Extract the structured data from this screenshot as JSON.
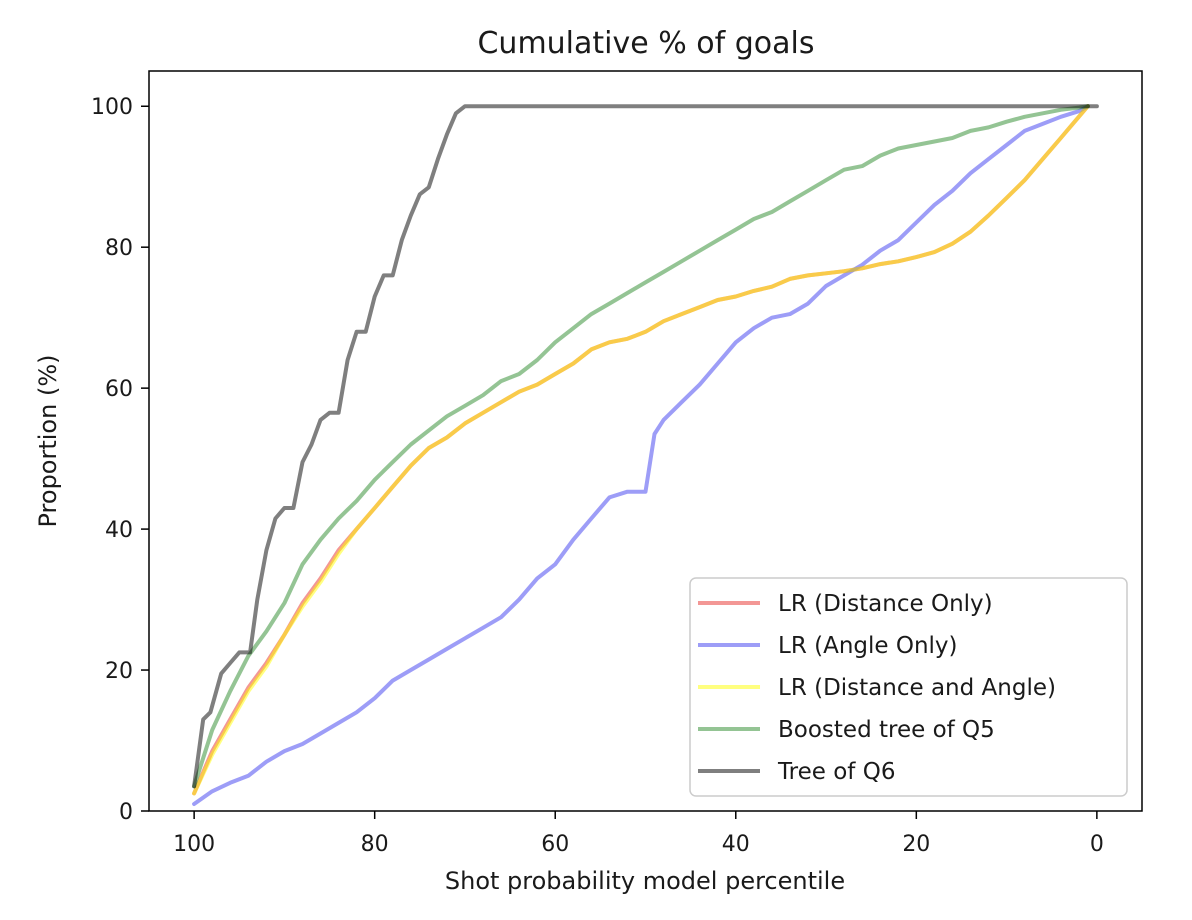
{
  "chart_data": {
    "type": "line",
    "title": "Cumulative % of goals",
    "xlabel": "Shot probability model percentile",
    "ylabel": "Proportion (%)",
    "xlim": [
      105,
      -5
    ],
    "ylim": [
      0,
      105
    ],
    "x_ticks": [
      100,
      80,
      60,
      40,
      20,
      0
    ],
    "y_ticks": [
      0,
      20,
      40,
      60,
      80,
      100
    ],
    "grid": false,
    "legend_position": "lower right",
    "series": [
      {
        "name": "LR (Distance Only)",
        "color": "#e8302b",
        "x": [
          100,
          98,
          96,
          94,
          92,
          90,
          88,
          86,
          84,
          82,
          80,
          78,
          76,
          74,
          72,
          70,
          68,
          66,
          64,
          62,
          60,
          58,
          56,
          54,
          52,
          50,
          48,
          46,
          44,
          42,
          40,
          38,
          36,
          34,
          32,
          30,
          28,
          26,
          24,
          22,
          20,
          18,
          16,
          14,
          12,
          10,
          8,
          6,
          4,
          2,
          1
        ],
        "y": [
          2.5,
          8.5,
          13,
          17.5,
          21,
          25,
          29.5,
          33,
          37,
          40,
          43,
          46,
          49,
          51.5,
          53,
          55,
          56.5,
          58,
          59.5,
          60.5,
          62,
          63.5,
          65.5,
          66.5,
          67,
          68,
          69.5,
          70.5,
          71.5,
          72.5,
          73,
          73.8,
          74.4,
          75.5,
          76,
          76.3,
          76.6,
          77,
          77.6,
          78,
          78.6,
          79.3,
          80.5,
          82.2,
          84.5,
          87,
          89.5,
          92.5,
          95.5,
          98.5,
          100
        ]
      },
      {
        "name": "LR (Angle Only)",
        "color": "#3b3bf0",
        "x": [
          100,
          98,
          96,
          94,
          92,
          90,
          88,
          86,
          84,
          82,
          80,
          78,
          76,
          74,
          72,
          70,
          68,
          66,
          64,
          62,
          60,
          58,
          56,
          54,
          52,
          50,
          49,
          48,
          46,
          44,
          42,
          40,
          38,
          36,
          34,
          32,
          30,
          28,
          26,
          24,
          22,
          20,
          18,
          16,
          14,
          12,
          10,
          8,
          6,
          4,
          2,
          1
        ],
        "y": [
          1,
          2.8,
          4,
          5,
          7,
          8.5,
          9.5,
          11,
          12.5,
          14,
          16,
          18.5,
          20,
          21.5,
          23,
          24.5,
          26,
          27.5,
          30,
          33,
          35,
          38.5,
          41.5,
          44.5,
          45.3,
          45.3,
          53.5,
          55.5,
          58,
          60.5,
          63.5,
          66.5,
          68.5,
          70,
          70.5,
          72,
          74.5,
          76,
          77.5,
          79.5,
          81,
          83.5,
          86,
          88,
          90.5,
          92.5,
          94.5,
          96.5,
          97.5,
          98.5,
          99.3,
          100
        ]
      },
      {
        "name": "LR (Distance and Angle)",
        "color": "#ffff00",
        "x": [
          100,
          98,
          96,
          94,
          92,
          90,
          88,
          86,
          84,
          82,
          80,
          78,
          76,
          74,
          72,
          70,
          68,
          66,
          64,
          62,
          60,
          58,
          56,
          54,
          52,
          50,
          48,
          46,
          44,
          42,
          40,
          38,
          36,
          34,
          32,
          30,
          28,
          26,
          24,
          22,
          20,
          18,
          16,
          14,
          12,
          10,
          8,
          6,
          4,
          2,
          1
        ],
        "y": [
          2.5,
          8,
          12.5,
          17,
          20.5,
          25,
          29,
          32.5,
          36.5,
          40,
          43,
          46,
          49,
          51.5,
          53,
          55,
          56.5,
          58,
          59.5,
          60.5,
          62,
          63.5,
          65.5,
          66.5,
          67,
          68,
          69.5,
          70.5,
          71.5,
          72.5,
          73,
          73.8,
          74.4,
          75.5,
          76,
          76.3,
          76.6,
          77,
          77.6,
          78,
          78.6,
          79.3,
          80.5,
          82.2,
          84.5,
          87,
          89.5,
          92.5,
          95.5,
          98.5,
          100
        ]
      },
      {
        "name": "Boosted tree of Q5",
        "color": "#2a8a2a",
        "x": [
          100,
          98,
          96,
          94,
          92,
          90,
          88,
          86,
          84,
          82,
          80,
          78,
          76,
          74,
          72,
          70,
          68,
          66,
          64,
          62,
          60,
          58,
          56,
          54,
          52,
          50,
          48,
          46,
          44,
          42,
          40,
          38,
          36,
          34,
          32,
          30,
          28,
          26,
          24,
          22,
          20,
          18,
          16,
          14,
          12,
          10,
          8,
          6,
          4,
          2,
          1
        ],
        "y": [
          3.5,
          11.5,
          17,
          22,
          25.5,
          29.5,
          35,
          38.5,
          41.5,
          44,
          47,
          49.5,
          52,
          54,
          56,
          57.5,
          59,
          61,
          62,
          64,
          66.5,
          68.5,
          70.5,
          72,
          73.5,
          75,
          76.5,
          78,
          79.5,
          81,
          82.5,
          84,
          85,
          86.5,
          88,
          89.5,
          91,
          91.5,
          93,
          94,
          94.5,
          95,
          95.5,
          96.5,
          97,
          97.8,
          98.5,
          99,
          99.5,
          99.8,
          100
        ]
      },
      {
        "name": "Tree of Q6",
        "color": "#000000",
        "x": [
          100,
          99,
          98.2,
          97,
          96,
          95,
          93.8,
          93,
          92,
          91,
          90,
          89,
          88,
          87,
          86,
          85,
          84,
          83,
          82,
          81,
          80,
          79,
          78,
          77,
          76,
          75,
          74,
          73,
          72,
          71,
          70,
          0
        ],
        "y": [
          3.5,
          13,
          14,
          19.5,
          21,
          22.5,
          22.5,
          30,
          37,
          41.5,
          43,
          43,
          49.5,
          52,
          55.5,
          56.5,
          56.5,
          64,
          68,
          68,
          73,
          76,
          76,
          81,
          84.5,
          87.5,
          88.5,
          92.5,
          96,
          99,
          100,
          100
        ]
      }
    ]
  }
}
